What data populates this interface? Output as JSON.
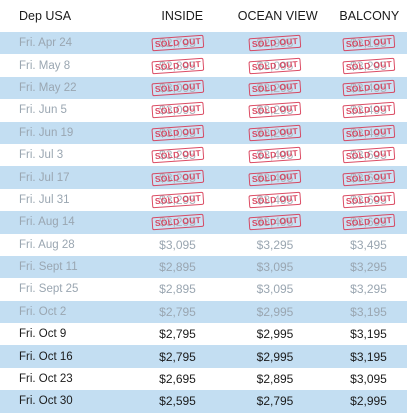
{
  "headers": {
    "dep": "Dep USA",
    "inside": "INSIDE",
    "ocean": "OCEAN VIEW",
    "balcony": "BALCONY"
  },
  "stamp_text": "SOLD OUT",
  "rows": [
    {
      "date": "Fri. Apr 24",
      "inside": "$2,795",
      "ocean": "$2,995",
      "balcony": "$3,195",
      "sold": [
        true,
        true,
        true
      ]
    },
    {
      "date": "Fri. May 8",
      "inside": "$2,895",
      "ocean": "$3,095",
      "balcony": "$3,295",
      "sold": [
        true,
        true,
        true
      ]
    },
    {
      "date": "Fri. May 22",
      "inside": "$3,095",
      "ocean": "$3,295",
      "balcony": "$3,495",
      "sold": [
        true,
        true,
        true
      ]
    },
    {
      "date": "Fri. Jun 5",
      "inside": "$3,095",
      "ocean": "$3,295",
      "balcony": "$3,495",
      "sold": [
        true,
        true,
        true
      ]
    },
    {
      "date": "Fri. Jun 19",
      "inside": "$3,095",
      "ocean": "$3,295",
      "balcony": "$3,495",
      "sold": [
        true,
        true,
        true
      ]
    },
    {
      "date": "Fri. Jul 3",
      "inside": "$3,295",
      "ocean": "$3,495",
      "balcony": "$3,695",
      "sold": [
        true,
        true,
        true
      ]
    },
    {
      "date": "Fri. Jul 17",
      "inside": "$3,295",
      "ocean": "$3,495",
      "balcony": "$3,695",
      "sold": [
        true,
        true,
        true
      ]
    },
    {
      "date": "Fri. Jul 31",
      "inside": "$3,295",
      "ocean": "$3,495",
      "balcony": "$3,695",
      "sold": [
        true,
        true,
        true
      ]
    },
    {
      "date": "Fri. Aug 14",
      "inside": "$3,295",
      "ocean": "$3,495",
      "balcony": "$3,695",
      "sold": [
        true,
        true,
        true
      ]
    },
    {
      "date": "Fri. Aug 28",
      "inside": "$3,095",
      "ocean": "$3,295",
      "balcony": "$3,495",
      "sold": [
        false,
        false,
        false
      ]
    },
    {
      "date": "Fri. Sept 11",
      "inside": "$2,895",
      "ocean": "$3,095",
      "balcony": "$3,295",
      "sold": [
        false,
        false,
        false
      ]
    },
    {
      "date": "Fri. Sept 25",
      "inside": "$2,895",
      "ocean": "$3,095",
      "balcony": "$3,295",
      "sold": [
        false,
        false,
        false
      ]
    },
    {
      "date": "Fri. Oct 2",
      "inside": "$2,795",
      "ocean": "$2,995",
      "balcony": "$3,195",
      "sold": [
        false,
        false,
        false
      ]
    },
    {
      "date": "Fri. Oct 9",
      "inside": "$2,795",
      "ocean": "$2,995",
      "balcony": "$3,195",
      "sold": [
        false,
        false,
        false
      ]
    },
    {
      "date": "Fri. Oct 16",
      "inside": "$2,795",
      "ocean": "$2,995",
      "balcony": "$3,195",
      "sold": [
        false,
        false,
        false
      ]
    },
    {
      "date": "Fri. Oct 23",
      "inside": "$2,695",
      "ocean": "$2,895",
      "balcony": "$3,095",
      "sold": [
        false,
        false,
        false
      ]
    },
    {
      "date": "Fri. Oct 30",
      "inside": "$2,595",
      "ocean": "$2,795",
      "balcony": "$2,995",
      "sold": [
        false,
        false,
        false
      ]
    }
  ]
}
